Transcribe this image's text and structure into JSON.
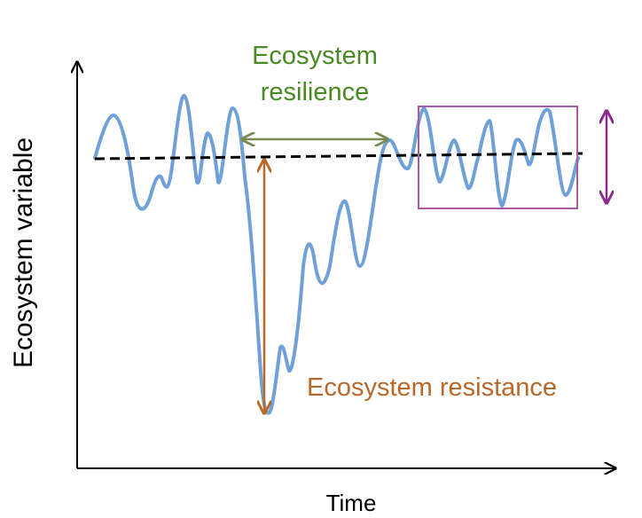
{
  "labels": {
    "resilience_line1": "Ecosystem",
    "resilience_line2": "resilience",
    "resistance": "Ecosystem resistance",
    "y_axis": "Ecosystem variable",
    "x_axis": "Time"
  },
  "colors": {
    "curve": "#6fa0d8",
    "baseline": "#000000",
    "resilience": "#4a8a24",
    "resilience_arrow": "#7a8a52",
    "resistance": "#b8692a",
    "variability": "#8b2a8b",
    "axis": "#000000"
  }
}
